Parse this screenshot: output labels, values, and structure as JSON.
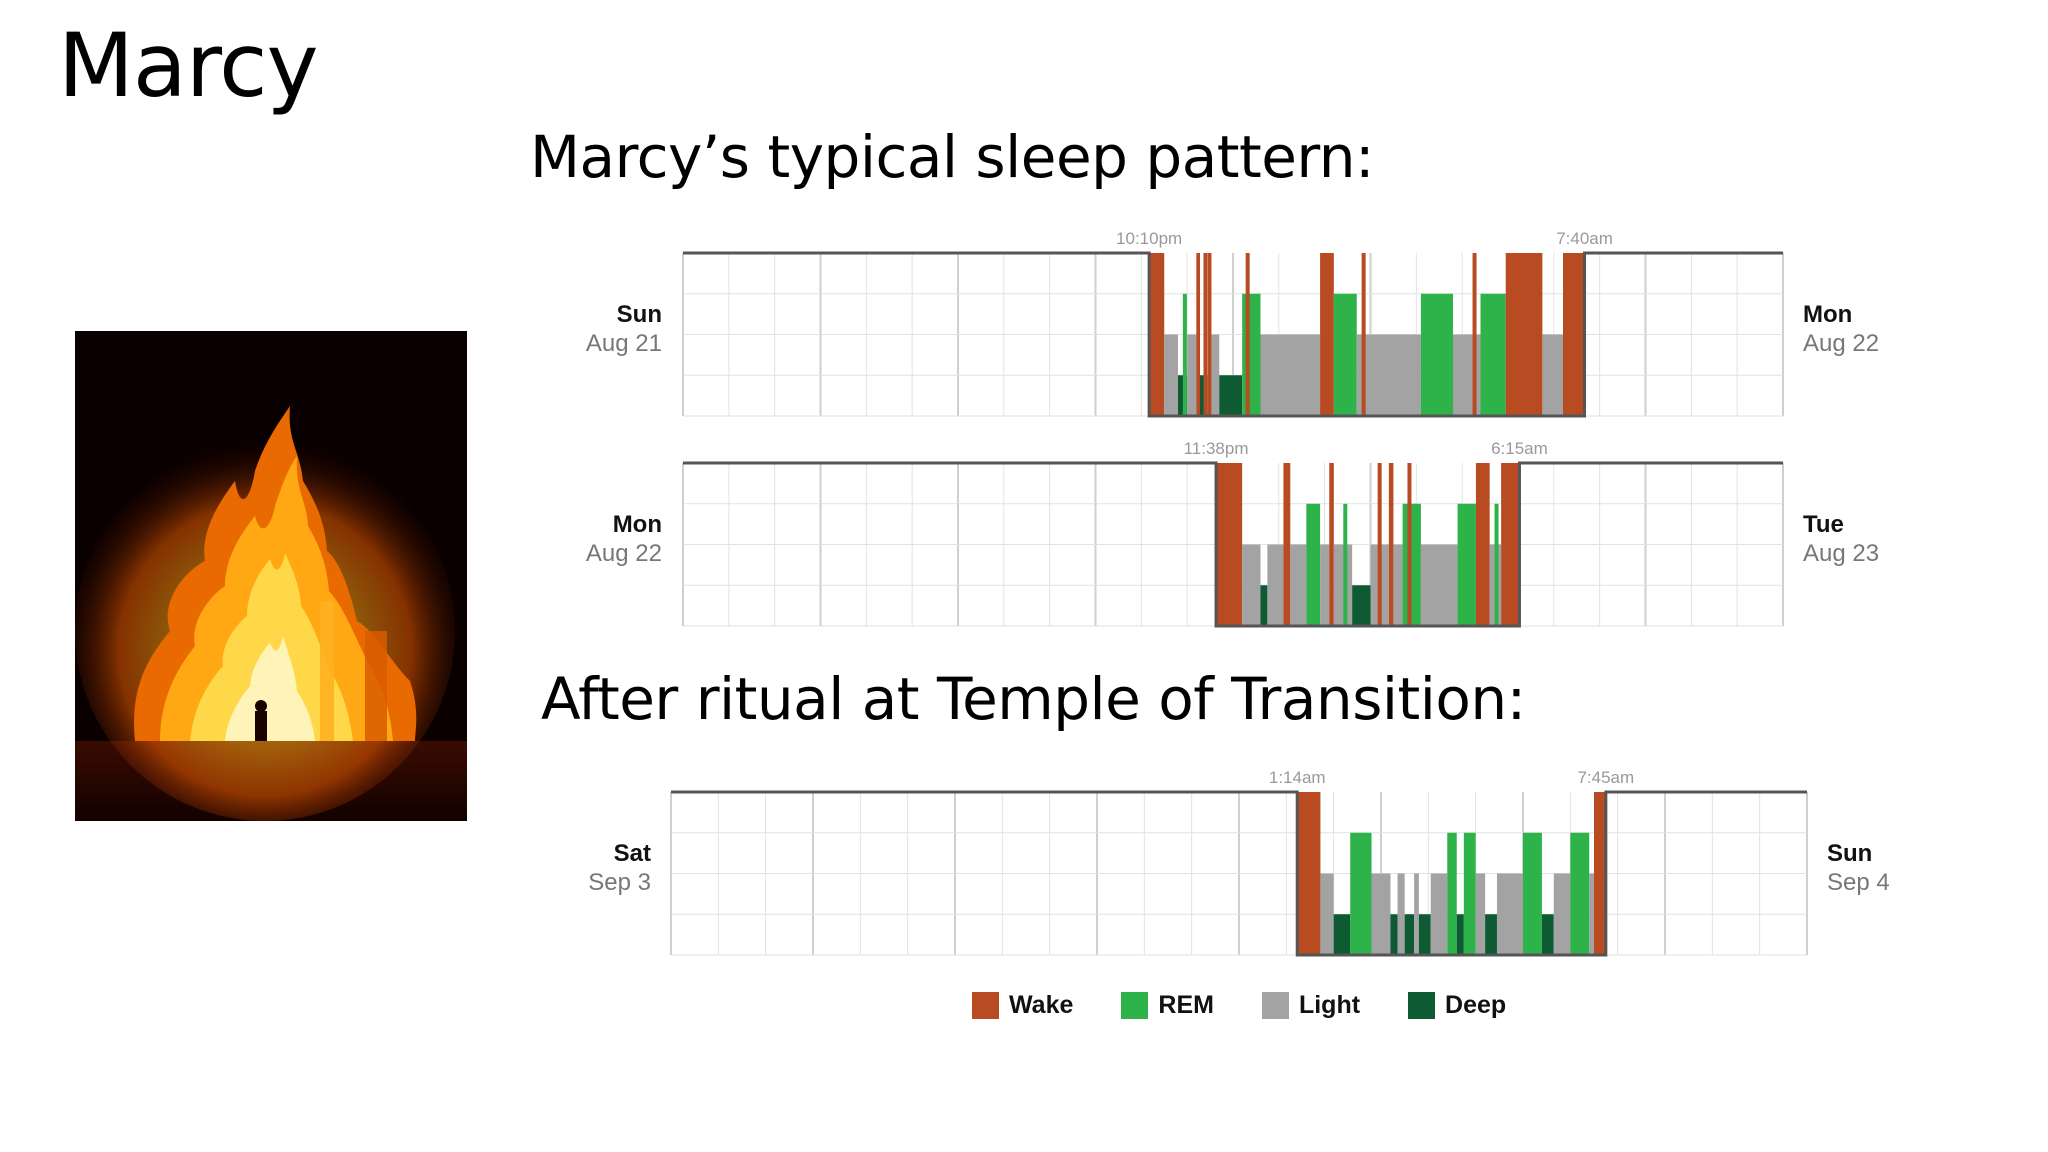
{
  "slide": {
    "title": "Marcy",
    "subtitle_1": "Marcy’s typical sleep pattern:",
    "subtitle_2": "After ritual at Temple of Transition:"
  },
  "colors": {
    "wake": "#b84b22",
    "rem": "#2db34a",
    "light": "#a3a3a3",
    "deep": "#0e5a32",
    "grid": "#e2e2e2",
    "axis": "#555555"
  },
  "legend": [
    {
      "key": "wake",
      "label": "Wake"
    },
    {
      "key": "rem",
      "label": "REM"
    },
    {
      "key": "light",
      "label": "Light"
    },
    {
      "key": "deep",
      "label": "Deep"
    }
  ],
  "chart_data": [
    {
      "type": "bar",
      "x_unit": "hours",
      "x_range": [
        12,
        36
      ],
      "level_order": [
        "Deep",
        "Light",
        "REM",
        "Wake"
      ],
      "start_day": "Sun",
      "start_date": "Aug 21",
      "end_day": "Mon",
      "end_date": "Aug 22",
      "sleep_start_label": "10:10pm",
      "sleep_start": 22.17,
      "sleep_end_label": "7:40am",
      "sleep_end": 31.67,
      "segments": [
        [
          "wake",
          22.17,
          22.5
        ],
        [
          "light",
          22.5,
          22.8
        ],
        [
          "deep",
          22.8,
          23.0
        ],
        [
          "light",
          23.0,
          23.2
        ],
        [
          "wake",
          23.2,
          23.28
        ],
        [
          "deep",
          23.28,
          23.45
        ],
        [
          "wake",
          23.45,
          23.53
        ],
        [
          "light",
          23.53,
          23.7
        ],
        [
          "deep",
          23.7,
          24.2
        ],
        [
          "rem",
          24.2,
          24.6
        ],
        [
          "light",
          24.6,
          25.9
        ],
        [
          "wake",
          25.9,
          26.2
        ],
        [
          "rem",
          26.2,
          26.7
        ],
        [
          "light",
          26.7,
          28.1
        ],
        [
          "rem",
          28.1,
          28.8
        ],
        [
          "light",
          28.8,
          29.4
        ],
        [
          "rem",
          29.4,
          29.95
        ],
        [
          "wake",
          29.95,
          30.75
        ],
        [
          "light",
          30.75,
          31.2
        ],
        [
          "wake",
          31.2,
          31.67
        ]
      ],
      "spikes": [
        [
          22.95,
          2
        ],
        [
          23.4,
          3
        ],
        [
          24.32,
          3
        ],
        [
          26.85,
          3
        ],
        [
          29.27,
          3
        ]
      ]
    },
    {
      "type": "bar",
      "x_unit": "hours",
      "x_range": [
        12,
        36
      ],
      "level_order": [
        "Deep",
        "Light",
        "REM",
        "Wake"
      ],
      "start_day": "Mon",
      "start_date": "Aug 22",
      "end_day": "Tue",
      "end_date": "Aug 23",
      "sleep_start_label": "11:38pm",
      "sleep_start": 23.63,
      "sleep_end_label": "6:15am",
      "sleep_end": 30.25,
      "segments": [
        [
          "wake",
          23.63,
          24.2
        ],
        [
          "light",
          24.2,
          24.6
        ],
        [
          "deep",
          24.6,
          24.75
        ],
        [
          "light",
          24.75,
          25.1
        ],
        [
          "wake",
          25.1,
          25.25
        ],
        [
          "light",
          25.25,
          25.6
        ],
        [
          "rem",
          25.6,
          25.9
        ],
        [
          "light",
          25.9,
          26.1
        ],
        [
          "wake",
          26.1,
          26.2
        ],
        [
          "light",
          26.2,
          26.6
        ],
        [
          "deep",
          26.6,
          27.0
        ],
        [
          "light",
          27.0,
          27.4
        ],
        [
          "wake",
          27.4,
          27.5
        ],
        [
          "light",
          27.5,
          27.7
        ],
        [
          "rem",
          27.7,
          28.1
        ],
        [
          "light",
          28.1,
          28.9
        ],
        [
          "rem",
          28.9,
          29.3
        ],
        [
          "wake",
          29.3,
          29.6
        ],
        [
          "light",
          29.6,
          29.85
        ],
        [
          "wake",
          29.85,
          30.25
        ]
      ],
      "spikes": [
        [
          26.45,
          2
        ],
        [
          27.2,
          3
        ],
        [
          27.85,
          3
        ],
        [
          29.75,
          2
        ]
      ]
    },
    {
      "type": "bar",
      "x_unit": "hours",
      "x_range": [
        12,
        36
      ],
      "level_order": [
        "Deep",
        "Light",
        "REM",
        "Wake"
      ],
      "start_day": "Sat",
      "start_date": "Sep 3",
      "end_day": "Sun",
      "end_date": "Sep 4",
      "sleep_start_label": "1:14am",
      "sleep_start": 25.23,
      "sleep_end_label": "7:45am",
      "sleep_end": 31.75,
      "segments": [
        [
          "wake",
          25.23,
          25.72
        ],
        [
          "light",
          25.72,
          26.0
        ],
        [
          "deep",
          26.0,
          26.35
        ],
        [
          "rem",
          26.35,
          26.8
        ],
        [
          "light",
          26.8,
          27.2
        ],
        [
          "deep",
          27.2,
          27.35
        ],
        [
          "light",
          27.35,
          27.5
        ],
        [
          "deep",
          27.5,
          27.7
        ],
        [
          "light",
          27.7,
          27.8
        ],
        [
          "deep",
          27.8,
          28.05
        ],
        [
          "light",
          28.05,
          28.4
        ],
        [
          "rem",
          28.4,
          28.6
        ],
        [
          "deep",
          28.6,
          28.75
        ],
        [
          "rem",
          28.75,
          29.0
        ],
        [
          "light",
          29.0,
          29.2
        ],
        [
          "deep",
          29.2,
          29.45
        ],
        [
          "light",
          29.45,
          30.0
        ],
        [
          "rem",
          30.0,
          30.4
        ],
        [
          "deep",
          30.4,
          30.65
        ],
        [
          "light",
          30.65,
          31.0
        ],
        [
          "rem",
          31.0,
          31.4
        ],
        [
          "light",
          31.4,
          31.5
        ],
        [
          "wake",
          31.5,
          31.75
        ]
      ],
      "spikes": []
    }
  ]
}
